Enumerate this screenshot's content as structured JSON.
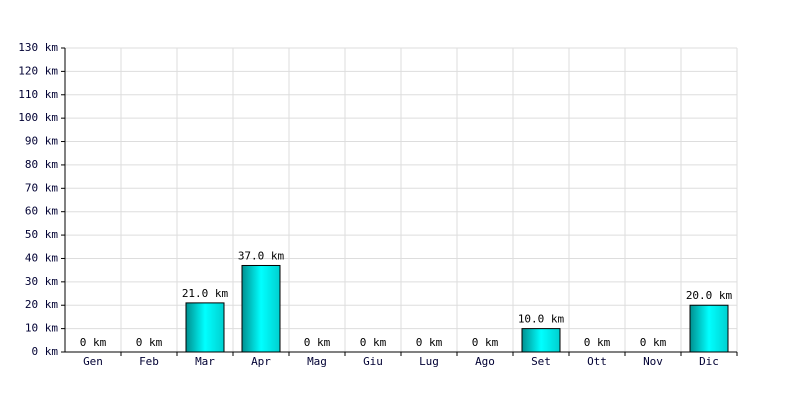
{
  "chart_data": {
    "type": "bar",
    "categories": [
      "Gen",
      "Feb",
      "Mar",
      "Apr",
      "Mag",
      "Giu",
      "Lug",
      "Ago",
      "Set",
      "Ott",
      "Nov",
      "Dic"
    ],
    "values": [
      0,
      0,
      21,
      37,
      0,
      0,
      0,
      0,
      10,
      0,
      0,
      20
    ],
    "value_labels": [
      "0 km",
      "0 km",
      "21.0 km",
      "37.0 km",
      "0 km",
      "0 km",
      "0 km",
      "0 km",
      "10.0 km",
      "0 km",
      "0 km",
      "20.0 km"
    ],
    "color": "#00d0d0",
    "ylim": [
      0,
      130
    ],
    "yticks": [
      {
        "value": 0,
        "label": "0 km"
      },
      {
        "value": 10,
        "label": "10 km"
      },
      {
        "value": 20,
        "label": "20 km"
      },
      {
        "value": 30,
        "label": "30 km"
      },
      {
        "value": 40,
        "label": "40 km"
      },
      {
        "value": 50,
        "label": "50 km"
      },
      {
        "value": 60,
        "label": "60 km"
      },
      {
        "value": 70,
        "label": "70 km"
      },
      {
        "value": 80,
        "label": "80 km"
      },
      {
        "value": 90,
        "label": "90 km"
      },
      {
        "value": 100,
        "label": "100 km"
      },
      {
        "value": 110,
        "label": "110 km"
      },
      {
        "value": 120,
        "label": "120 km"
      },
      {
        "value": 130,
        "label": "130 km"
      }
    ],
    "grid": true
  }
}
